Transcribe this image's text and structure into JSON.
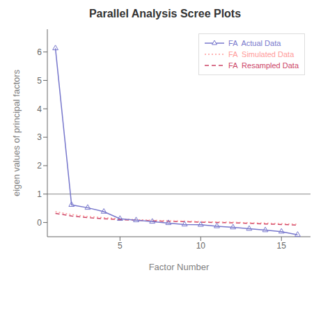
{
  "chart_data": {
    "type": "line",
    "title": "Parallel Analysis Scree Plots",
    "x_label": "Factor Number",
    "y_label": "eigen values of principal factors",
    "x": [
      1,
      2,
      3,
      4,
      5,
      6,
      7,
      8,
      9,
      10,
      11,
      12,
      13,
      14,
      15,
      16
    ],
    "series": [
      {
        "name": "FA  Actual Data",
        "color": "#7777CC",
        "line_style": "solid",
        "marker": "triangle",
        "values": [
          6.13,
          0.62,
          0.52,
          0.38,
          0.13,
          0.08,
          0.03,
          -0.02,
          -0.07,
          -0.08,
          -0.13,
          -0.17,
          -0.22,
          -0.27,
          -0.32,
          -0.43
        ]
      },
      {
        "name": "FA  Simulated Data",
        "color": "#FF9999",
        "line_style": "dotted",
        "values": [
          0.38,
          0.28,
          0.21,
          0.17,
          0.13,
          0.1,
          0.08,
          0.06,
          0.05,
          0.03,
          0.02,
          0.01,
          -0.01,
          -0.02,
          -0.04,
          -0.06
        ]
      },
      {
        "name": "FA  Resampled Data",
        "color": "#CC4466",
        "line_style": "dashed",
        "values": [
          0.32,
          0.23,
          0.17,
          0.13,
          0.1,
          0.08,
          0.06,
          0.04,
          0.03,
          0.01,
          0.0,
          -0.01,
          -0.03,
          -0.05,
          -0.07,
          -0.09
        ]
      }
    ],
    "hline": {
      "y": 1.0,
      "color": "#888888"
    },
    "xlim": [
      0.5,
      16.8
    ],
    "xticks": [
      5,
      10,
      15
    ],
    "ylim": [
      -0.5,
      6.8
    ],
    "yticks": [
      0,
      1,
      2,
      3,
      4,
      5,
      6
    ],
    "grid": false,
    "legend": "upper right"
  }
}
